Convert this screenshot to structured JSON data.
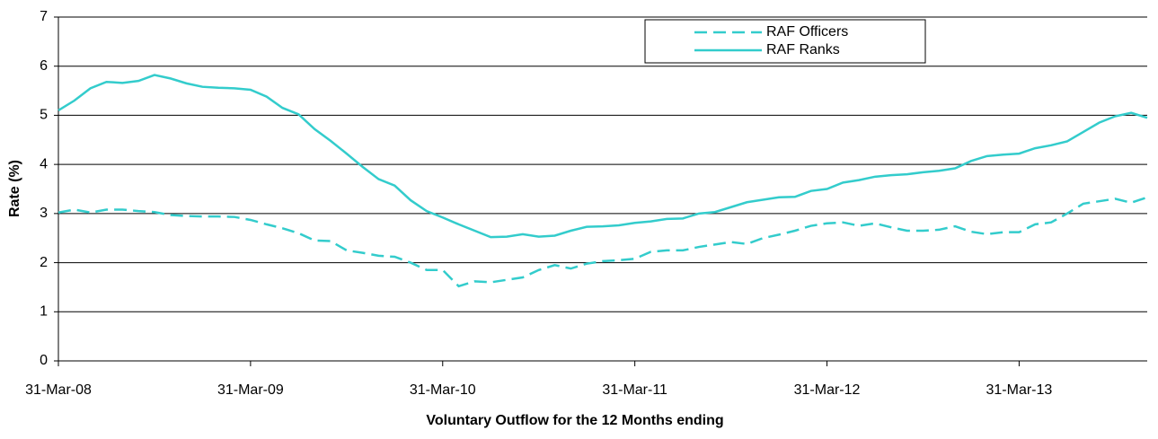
{
  "chart_data": {
    "type": "line",
    "x_label": "Voluntary Outflow for the 12 Months ending",
    "y_label": "Rate (%)",
    "categories": [
      "31-Mar-08",
      null,
      null,
      null,
      null,
      null,
      null,
      null,
      null,
      null,
      null,
      null,
      "31-Mar-09",
      null,
      null,
      null,
      null,
      null,
      null,
      null,
      null,
      null,
      null,
      null,
      "31-Mar-10",
      null,
      null,
      null,
      null,
      null,
      null,
      null,
      null,
      null,
      null,
      null,
      "31-Mar-11",
      null,
      null,
      null,
      null,
      null,
      null,
      null,
      null,
      null,
      null,
      null,
      "31-Mar-12",
      null,
      null,
      null,
      null,
      null,
      null,
      null,
      null,
      null,
      null,
      null,
      "31-Mar-13",
      null,
      null,
      null,
      null,
      null,
      null,
      null,
      null
    ],
    "series": [
      {
        "name": "RAF Officers",
        "color": "#33cccc",
        "dash": true,
        "values": [
          3.02,
          3.08,
          3.02,
          3.08,
          3.08,
          3.05,
          3.03,
          2.97,
          2.95,
          2.94,
          2.94,
          2.93,
          2.87,
          2.78,
          2.7,
          2.6,
          2.45,
          2.44,
          2.25,
          2.2,
          2.14,
          2.12,
          2.0,
          1.85,
          1.85,
          1.52,
          1.62,
          1.6,
          1.65,
          1.7,
          1.85,
          1.95,
          1.88,
          1.98,
          2.03,
          2.05,
          2.08,
          2.22,
          2.25,
          2.25,
          2.32,
          2.37,
          2.42,
          2.38,
          2.5,
          2.57,
          2.65,
          2.75,
          2.8,
          2.82,
          2.75,
          2.8,
          2.72,
          2.65,
          2.65,
          2.67,
          2.74,
          2.63,
          2.58,
          2.62,
          2.62,
          2.78,
          2.82,
          3.0,
          3.2,
          3.25,
          3.3,
          3.22,
          3.33
        ]
      },
      {
        "name": "RAF Ranks",
        "color": "#33cccc",
        "dash": false,
        "values": [
          5.1,
          5.3,
          5.55,
          5.68,
          5.66,
          5.7,
          5.82,
          5.75,
          5.65,
          5.58,
          5.56,
          5.55,
          5.52,
          5.38,
          5.15,
          5.02,
          4.72,
          4.48,
          4.22,
          3.95,
          3.7,
          3.57,
          3.27,
          3.05,
          2.92,
          2.78,
          2.65,
          2.52,
          2.53,
          2.58,
          2.53,
          2.55,
          2.65,
          2.73,
          2.74,
          2.76,
          2.81,
          2.84,
          2.89,
          2.9,
          3.0,
          3.03,
          3.13,
          3.23,
          3.28,
          3.33,
          3.34,
          3.46,
          3.5,
          3.63,
          3.68,
          3.75,
          3.78,
          3.8,
          3.84,
          3.87,
          3.92,
          4.07,
          4.17,
          4.2,
          4.22,
          4.33,
          4.39,
          4.47,
          4.66,
          4.85,
          4.98,
          5.05,
          4.95
        ]
      }
    ],
    "ylim": [
      0,
      7
    ],
    "yticks": [
      0,
      1,
      2,
      3,
      4,
      5,
      6,
      7
    ],
    "grid": true,
    "legend": "top-right"
  }
}
